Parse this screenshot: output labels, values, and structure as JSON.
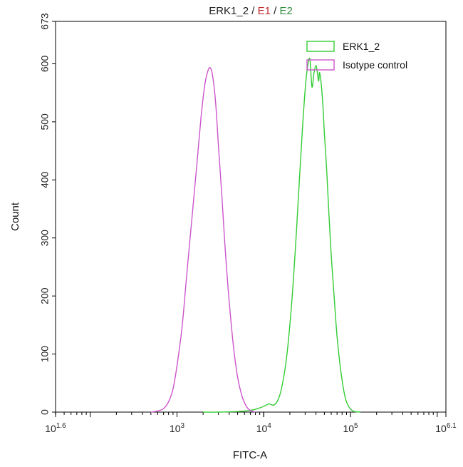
{
  "chart_data": {
    "type": "line",
    "title_parts": [
      {
        "text": "ERK1_2",
        "color": "#222222"
      },
      {
        "text": " / ",
        "color": "#222222"
      },
      {
        "text": "E1",
        "color": "#c0282d"
      },
      {
        "text": " / ",
        "color": "#222222"
      },
      {
        "text": "E2",
        "color": "#2e8b3a"
      }
    ],
    "xlabel": "FITC-A",
    "ylabel": "Count",
    "x_scale": "log",
    "xlim": [
      39.81,
      1258925
    ],
    "ylim": [
      0,
      673
    ],
    "x_ticks": [
      {
        "base": "10",
        "exp": "1.6",
        "value": 39.81
      },
      {
        "base": "10",
        "exp": "3",
        "value": 1000
      },
      {
        "base": "10",
        "exp": "4",
        "value": 10000
      },
      {
        "base": "10",
        "exp": "5",
        "value": 100000
      },
      {
        "base": "10",
        "exp": "6.1",
        "value": 1258925
      }
    ],
    "y_ticks": [
      0,
      100,
      200,
      300,
      400,
      500,
      600,
      673
    ],
    "legend_position": "top-right",
    "series": [
      {
        "name": "ERK1_2",
        "color": "#33cc33",
        "x": [
          2000,
          3000,
          5000,
          7000,
          8500,
          10000,
          11500,
          13000,
          14500,
          16000,
          18000,
          20000,
          22000,
          24000,
          26000,
          28000,
          30000,
          32000,
          34000,
          36000,
          38000,
          40000,
          41500,
          43000,
          44000,
          46000,
          48000,
          50000,
          53000,
          56000,
          60000,
          65000,
          70000,
          76000,
          82000,
          88000,
          95000,
          102000,
          110000,
          130000
        ],
        "y": [
          0,
          0,
          1,
          3,
          6,
          10,
          14,
          12,
          20,
          40,
          85,
          150,
          230,
          320,
          410,
          490,
          555,
          595,
          608,
          560,
          585,
          597,
          585,
          570,
          585,
          565,
          530,
          480,
          420,
          350,
          270,
          195,
          130,
          80,
          45,
          22,
          10,
          4,
          1,
          0
        ]
      },
      {
        "name": "Isotype control",
        "color": "#cc55cc",
        "x": [
          500,
          600,
          700,
          800,
          900,
          1000,
          1150,
          1300,
          1500,
          1700,
          1900,
          2100,
          2300,
          2450,
          2600,
          2800,
          3000,
          3300,
          3600,
          4000,
          4500,
          5000,
          5600,
          6300,
          7000,
          8000
        ],
        "y": [
          0,
          2,
          6,
          18,
          40,
          80,
          150,
          240,
          340,
          430,
          510,
          565,
          590,
          592,
          575,
          530,
          460,
          370,
          280,
          190,
          110,
          60,
          28,
          10,
          3,
          0
        ]
      }
    ]
  }
}
